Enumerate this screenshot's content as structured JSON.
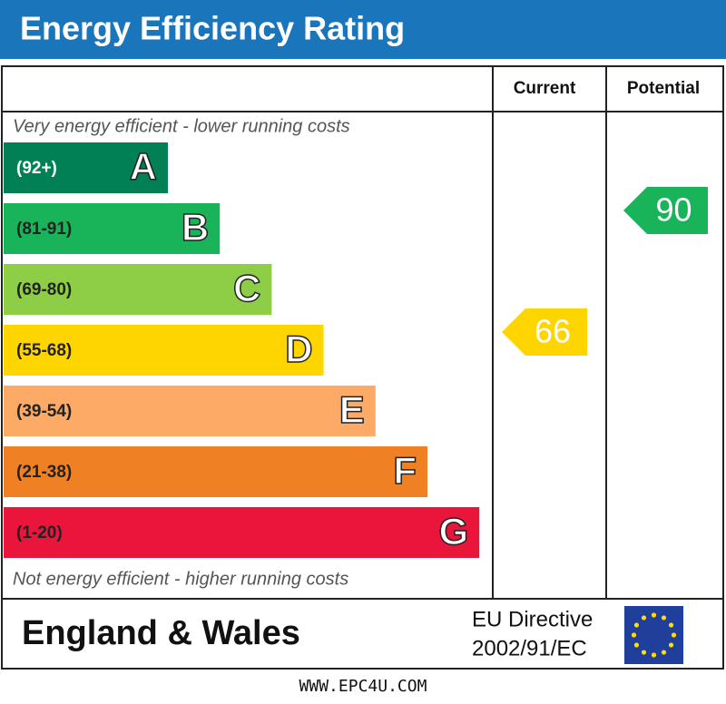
{
  "title": "Energy Efficiency Rating",
  "columns": [
    "Current",
    "Potential"
  ],
  "top_note": "Very energy efficient - lower running costs",
  "bottom_note": "Not energy efficient - higher running costs",
  "bands": [
    {
      "range": "(92+)",
      "letter": "A",
      "color": "#008054"
    },
    {
      "range": "(81-91)",
      "letter": "B",
      "color": "#19b459"
    },
    {
      "range": "(69-80)",
      "letter": "C",
      "color": "#8dce46"
    },
    {
      "range": "(55-68)",
      "letter": "D",
      "color": "#ffd500"
    },
    {
      "range": "(39-54)",
      "letter": "E",
      "color": "#fcaa65"
    },
    {
      "range": "(21-38)",
      "letter": "F",
      "color": "#ef8023"
    },
    {
      "range": "(1-20)",
      "letter": "G",
      "color": "#e9153b"
    }
  ],
  "current": 66,
  "potential": 90,
  "region": "England & Wales",
  "directive": [
    "EU Directive",
    "2002/91/EC"
  ],
  "footer": "WWW.EPC4U.COM"
}
